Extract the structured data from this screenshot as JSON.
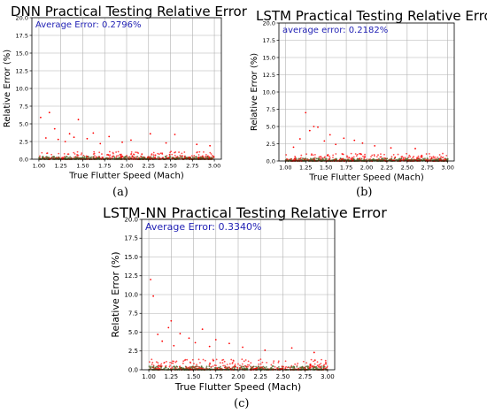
{
  "charts": [
    {
      "id": "a",
      "caption": "(a)",
      "chart_data": {
        "type": "scatter",
        "title": "DNN Practical Testing Relative Error",
        "xlabel": "True Flutter Speed (Mach)",
        "ylabel": "Relative Error (%)",
        "xlim": [
          0.92,
          3.08
        ],
        "ylim": [
          0,
          20
        ],
        "xticks": [
          "1.00",
          "1.25",
          "1.50",
          "1.75",
          "2.00",
          "2.25",
          "2.50",
          "2.75",
          "3.00"
        ],
        "yticks": [
          "0.0",
          "2.5",
          "5.0",
          "7.5",
          "10.0",
          "12.5",
          "15.0",
          "17.5",
          "20.0"
        ],
        "grid": true,
        "annotation": "Average Error: 0.2796%",
        "series": [
          {
            "color": "#ff0000",
            "points": [
              [
                1.02,
                5.9
              ],
              [
                1.12,
                6.6
              ],
              [
                1.45,
                5.6
              ],
              [
                1.18,
                4.3
              ],
              [
                1.35,
                3.6
              ],
              [
                1.62,
                3.7
              ],
              [
                1.8,
                3.2
              ],
              [
                2.27,
                3.6
              ],
              [
                2.55,
                3.5
              ],
              [
                1.08,
                3.0
              ],
              [
                1.55,
                2.9
              ],
              [
                2.05,
                2.7
              ],
              [
                2.8,
                2.1
              ],
              [
                1.3,
                2.5
              ],
              [
                1.95,
                2.4
              ],
              [
                2.45,
                2.3
              ],
              [
                2.95,
                1.9
              ],
              [
                1.7,
                2.2
              ],
              [
                1.4,
                3.1
              ],
              [
                1.22,
                2.8
              ]
            ]
          },
          {
            "color": "#556b2f",
            "points": []
          }
        ]
      }
    },
    {
      "id": "b",
      "caption": "(b)",
      "chart_data": {
        "type": "scatter",
        "title": "LSTM Practical Testing Relative Error",
        "xlabel": "True Flutter Speed (Mach)",
        "ylabel": "Relative Error (%)",
        "xlim": [
          0.92,
          3.08
        ],
        "ylim": [
          0,
          20
        ],
        "xticks": [
          "1.00",
          "1.25",
          "1.50",
          "1.75",
          "2.00",
          "2.25",
          "2.50",
          "2.75",
          "3.00"
        ],
        "yticks": [
          "0.0",
          "2.5",
          "5.0",
          "7.5",
          "10.0",
          "12.5",
          "15.0",
          "17.5",
          "20.0"
        ],
        "grid": true,
        "annotation": "average error: 0.2182%",
        "series": [
          {
            "color": "#ff0000",
            "points": [
              [
                1.25,
                7.0
              ],
              [
                1.35,
                5.0
              ],
              [
                1.3,
                4.4
              ],
              [
                1.4,
                4.9
              ],
              [
                1.18,
                3.2
              ],
              [
                1.55,
                3.8
              ],
              [
                1.72,
                3.3
              ],
              [
                1.85,
                3.0
              ],
              [
                1.95,
                2.6
              ],
              [
                2.3,
                1.9
              ],
              [
                1.1,
                2.0
              ],
              [
                1.48,
                2.9
              ],
              [
                1.62,
                2.4
              ],
              [
                2.1,
                2.2
              ],
              [
                2.6,
                1.8
              ]
            ]
          },
          {
            "color": "#556b2f",
            "points": []
          }
        ]
      }
    },
    {
      "id": "c",
      "caption": "(c)",
      "chart_data": {
        "type": "scatter",
        "title": "LSTM-NN Practical Testing Relative Error",
        "xlabel": "True Flutter Speed (Mach)",
        "ylabel": "Relative Error (%)",
        "xlim": [
          0.92,
          3.08
        ],
        "ylim": [
          0,
          20
        ],
        "xticks": [
          "1.00",
          "1.25",
          "1.50",
          "1.75",
          "2.00",
          "2.25",
          "2.50",
          "2.75",
          "3.00"
        ],
        "yticks": [
          "0.0",
          "2.5",
          "5.0",
          "7.5",
          "10.0",
          "12.5",
          "15.0",
          "17.5",
          "20.0"
        ],
        "grid": true,
        "annotation": "Average Error: 0.3340%",
        "series": [
          {
            "color": "#ff0000",
            "points": [
              [
                1.02,
                12.0
              ],
              [
                1.05,
                9.8
              ],
              [
                1.25,
                6.5
              ],
              [
                1.22,
                5.6
              ],
              [
                1.6,
                5.4
              ],
              [
                1.35,
                4.8
              ],
              [
                1.1,
                4.7
              ],
              [
                1.45,
                4.2
              ],
              [
                1.75,
                4.0
              ],
              [
                1.9,
                3.5
              ],
              [
                2.05,
                3.0
              ],
              [
                2.6,
                2.9
              ],
              [
                1.15,
                3.8
              ],
              [
                1.28,
                3.2
              ],
              [
                2.3,
                2.6
              ],
              [
                2.85,
                2.3
              ],
              [
                1.52,
                3.6
              ],
              [
                1.68,
                3.1
              ]
            ]
          },
          {
            "color": "#556b2f",
            "points": []
          }
        ]
      }
    }
  ]
}
